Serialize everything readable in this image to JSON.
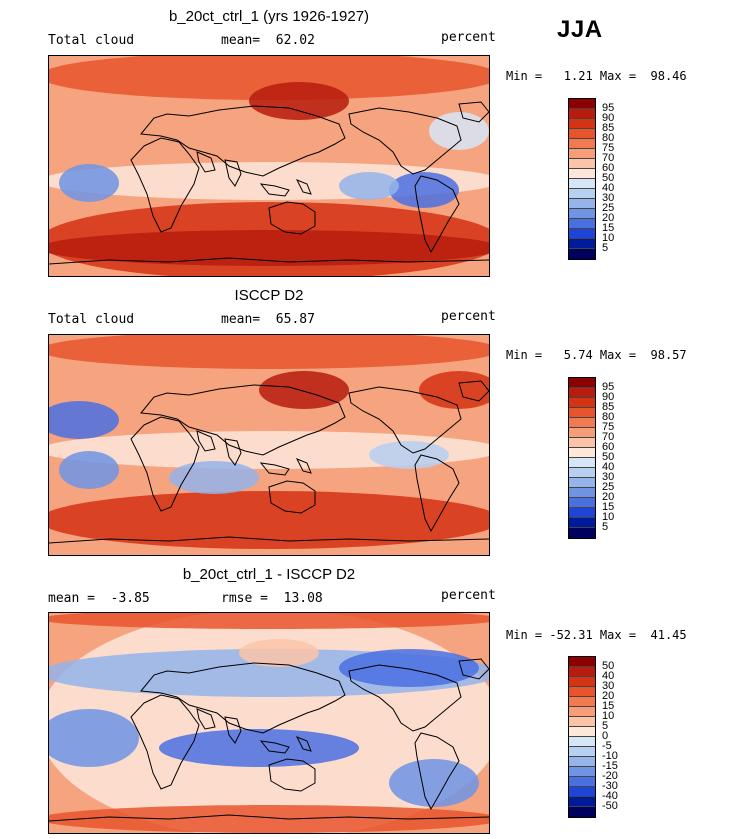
{
  "season": "JJA",
  "panels": [
    {
      "title": "b_20ct_ctrl_1 (yrs 1926-1927)",
      "left_label": "Total cloud",
      "center_label": "mean=  62.02",
      "right_label": "percent",
      "minmax": "Min =   1.21 Max =  98.46",
      "colorbar": {
        "labels": [
          "95",
          "90",
          "85",
          "80",
          "75",
          "70",
          "60",
          "50",
          "40",
          "30",
          "25",
          "20",
          "15",
          "10",
          "5"
        ],
        "colors": [
          "#8b0000",
          "#b71c0e",
          "#d43314",
          "#e8552c",
          "#f27a50",
          "#f79e78",
          "#fbc4a8",
          "#fde6da",
          "#d6e6f7",
          "#b7cff0",
          "#94b4ea",
          "#6f94e4",
          "#4a70e0",
          "#1f44d8",
          "#001a9c",
          "#00005e"
        ]
      }
    },
    {
      "title": "ISCCP D2",
      "left_label": "Total cloud",
      "center_label": "mean=  65.87",
      "right_label": "percent",
      "minmax": "Min =   5.74 Max =  98.57",
      "colorbar": {
        "labels": [
          "95",
          "90",
          "85",
          "80",
          "75",
          "70",
          "60",
          "50",
          "40",
          "30",
          "25",
          "20",
          "15",
          "10",
          "5"
        ],
        "colors": [
          "#8b0000",
          "#b71c0e",
          "#d43314",
          "#e8552c",
          "#f27a50",
          "#f79e78",
          "#fbc4a8",
          "#fde6da",
          "#d6e6f7",
          "#b7cff0",
          "#94b4ea",
          "#6f94e4",
          "#4a70e0",
          "#1f44d8",
          "#001a9c",
          "#00005e"
        ]
      }
    },
    {
      "title": "b_20ct_ctrl_1 - ISCCP D2",
      "left_label": "mean =  -3.85",
      "center_label": "rmse =  13.08",
      "right_label": "percent",
      "minmax": "Min = -52.31 Max =  41.45",
      "colorbar": {
        "labels": [
          "50",
          "40",
          "30",
          "20",
          "15",
          "10",
          "5",
          "0",
          "-5",
          "-10",
          "-15",
          "-20",
          "-30",
          "-40",
          "-50"
        ],
        "colors": [
          "#8b0000",
          "#b71c0e",
          "#d43314",
          "#e8552c",
          "#f27a50",
          "#f79e78",
          "#fbc4a8",
          "#fde6da",
          "#d6e6f7",
          "#b7cff0",
          "#94b4ea",
          "#6f94e4",
          "#4a70e0",
          "#1f44d8",
          "#001a9c",
          "#00005e"
        ]
      }
    }
  ]
}
